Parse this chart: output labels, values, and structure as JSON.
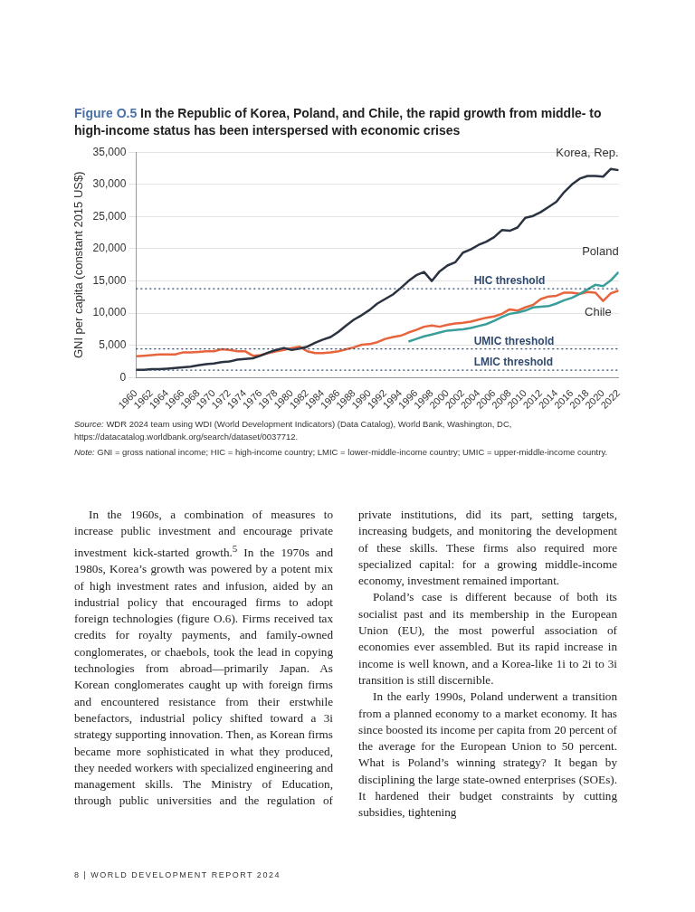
{
  "chart_data": {
    "type": "line",
    "title": "Figure O.5  In the Republic of Korea, Poland, and Chile, the rapid growth from middle- to high-income status has been interspersed with economic crises",
    "ylabel": "GNI per capita (constant 2015 US$)",
    "x": [
      1960,
      1961,
      1962,
      1963,
      1964,
      1965,
      1966,
      1967,
      1968,
      1969,
      1970,
      1971,
      1972,
      1973,
      1974,
      1975,
      1976,
      1977,
      1978,
      1979,
      1980,
      1981,
      1982,
      1983,
      1984,
      1985,
      1986,
      1987,
      1988,
      1989,
      1990,
      1991,
      1992,
      1993,
      1994,
      1995,
      1996,
      1997,
      1998,
      1999,
      2000,
      2001,
      2002,
      2003,
      2004,
      2005,
      2006,
      2007,
      2008,
      2009,
      2010,
      2011,
      2012,
      2013,
      2014,
      2015,
      2016,
      2017,
      2018,
      2019,
      2020,
      2021,
      2022
    ],
    "series": [
      {
        "name": "Korea, Rep.",
        "color": "#2b3240",
        "values": [
          1200,
          1200,
          1300,
          1300,
          1400,
          1500,
          1600,
          1700,
          1900,
          2100,
          2200,
          2400,
          2500,
          2800,
          2900,
          3000,
          3400,
          3900,
          4300,
          4600,
          4300,
          4500,
          4800,
          5400,
          5900,
          6300,
          7100,
          8100,
          9000,
          9700,
          10500,
          11500,
          12200,
          12900,
          13900,
          15000,
          15900,
          16400,
          15000,
          16500,
          17400,
          17900,
          19400,
          19900,
          20600,
          21100,
          21800,
          22900,
          22800,
          23300,
          24800,
          25100,
          25700,
          26500,
          27300,
          28800,
          30000,
          30900,
          31300,
          31300,
          31200,
          32400,
          32200
        ]
      },
      {
        "name": "Poland",
        "color": "#3a9e9a",
        "x": [
          1995,
          1996,
          1997,
          1998,
          1999,
          2000,
          2001,
          2002,
          2003,
          2004,
          2005,
          2006,
          2007,
          2008,
          2009,
          2010,
          2011,
          2012,
          2013,
          2014,
          2015,
          2016,
          2017,
          2018,
          2019,
          2020,
          2021,
          2022
        ],
        "values": [
          5600,
          6000,
          6400,
          6700,
          7000,
          7300,
          7400,
          7500,
          7700,
          8000,
          8300,
          8800,
          9400,
          9900,
          10100,
          10400,
          10900,
          11000,
          11100,
          11500,
          12000,
          12400,
          13000,
          13700,
          14400,
          14200,
          15100,
          16400
        ]
      },
      {
        "name": "Chile",
        "color": "#e8643c",
        "values": [
          3300,
          3400,
          3500,
          3600,
          3600,
          3600,
          3900,
          3900,
          4000,
          4100,
          4100,
          4400,
          4300,
          4100,
          4100,
          3400,
          3500,
          3800,
          4100,
          4300,
          4600,
          4800,
          4100,
          3800,
          3800,
          3900,
          4100,
          4400,
          4700,
          5100,
          5200,
          5500,
          6000,
          6300,
          6500,
          7000,
          7400,
          7900,
          8100,
          7900,
          8200,
          8400,
          8500,
          8700,
          9000,
          9300,
          9500,
          9900,
          10600,
          10400,
          10900,
          11300,
          12200,
          12600,
          12700,
          13200,
          13200,
          13000,
          13300,
          13200,
          11900,
          13100,
          13500
        ]
      }
    ],
    "xlim": [
      1960,
      2022
    ],
    "xticks": [
      1960,
      1962,
      1964,
      1966,
      1968,
      1970,
      1972,
      1974,
      1976,
      1978,
      1980,
      1982,
      1984,
      1986,
      1988,
      1990,
      1992,
      1994,
      1996,
      1998,
      2000,
      2002,
      2004,
      2006,
      2008,
      2010,
      2012,
      2014,
      2016,
      2018,
      2020,
      2022
    ],
    "ylim": [
      0,
      35000
    ],
    "yticks": [
      {
        "value": 0,
        "label": "0"
      },
      {
        "value": 5000,
        "label": "5,000"
      },
      {
        "value": 10000,
        "label": "10,000"
      },
      {
        "value": 15000,
        "label": "15,000"
      },
      {
        "value": 20000,
        "label": "20,000"
      },
      {
        "value": 25000,
        "label": "25,000"
      },
      {
        "value": 30000,
        "label": "30,000"
      },
      {
        "value": 35000,
        "label": "35,000"
      }
    ],
    "grid": "y",
    "legend": false,
    "marker": "none",
    "line_style": "solid",
    "ref_lines": [
      {
        "axis": "y",
        "value": 13800,
        "label": "HIC threshold",
        "color": "#2f4a6e",
        "line_style": "dotted"
      },
      {
        "axis": "y",
        "value": 4450,
        "label": "UMIC threshold",
        "color": "#2f4a6e",
        "line_style": "dotted"
      },
      {
        "axis": "y",
        "value": 1150,
        "label": "LMIC threshold",
        "color": "#2f4a6e",
        "line_style": "dotted"
      }
    ],
    "annotations": [
      "Source: WDR 2024 team using WDI (World Development Indicators) (Data Catalog), World Bank, Washington, DC, https://datacatalog.worldbank.org/search/dataset/0037712.",
      "Note: GNI = gross national income; HIC = high-income country; LMIC = lower-middle-income country; UMIC = upper-middle-income country.",
      "In the 1960s, a combination of measures to increase public investment and encourage private investment kick-started growth.$^{5}$ In the 1970s and 1980s, Korea’s growth was powered by a potent mix of high investment rates and infusion, aided by an industrial policy that encouraged firms to adopt foreign technologies (figure O.6). Firms received tax credits for royalty payments, and family-owned conglomerates, or chaebols, took the lead in copying technologies from abroad—primarily Japan. As Korean conglomerates caught up with foreign firms and encountered resistance from their erstwhile benefactors, industrial policy shifted toward a 3i strategy supporting innovation. Then, as Korean firms became more sophisticated in what they produced, they needed workers with specialized engineering and management skills. The Ministry of Education, through public universities and the regulation of private institutions, did its part, setting targets, increasing budgets, and monitoring the development of these skills. These firms also required more specialized capital: for a growing middle-income economy, investment remained important.",
      "Poland’s case is different because of both its socialist past and its membership in the European Union (EU), the most powerful association of economies ever assembled. But its rapid increase in income is well known, and a Korea-like 1i to 2i to 3i transition is still discernible.",
      "In the early 1990s, Poland underwent a transition from a planned economy to a market economy. It has since boosted its income per capita from 20 percent of the average for the European Union to 50 percent. What is Poland’s winning strategy? It began by disciplining the large state-owned enterprises (SOEs). It hardened their budget constraints by cutting subsidies, tightening",
      "8 | WORLD DEVELOPMENT REPORT 2024"
    ]
  }
}
